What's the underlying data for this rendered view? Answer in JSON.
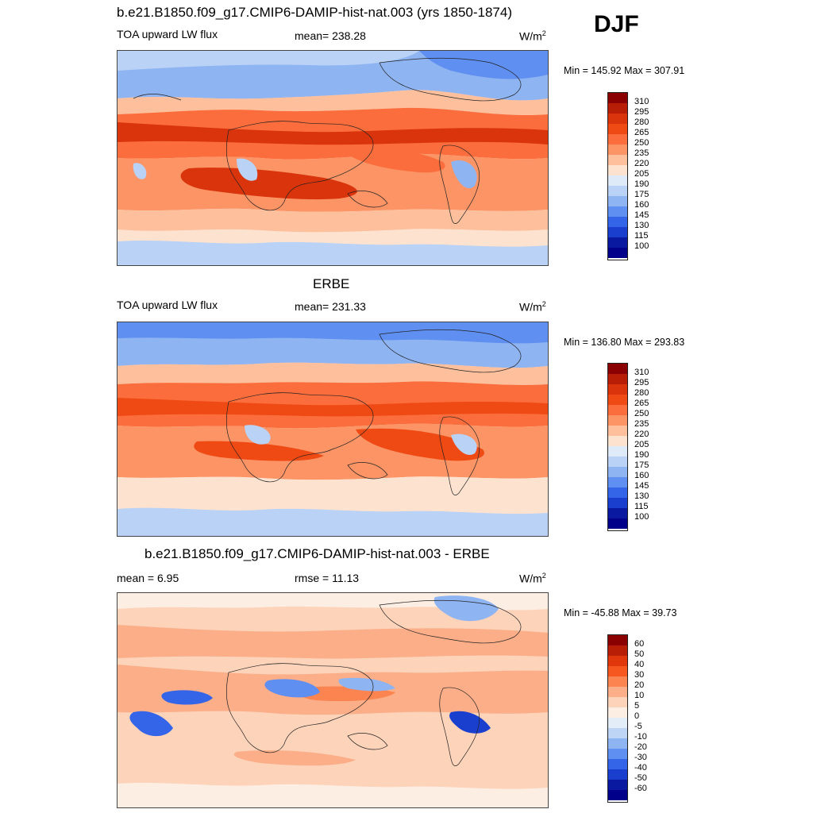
{
  "season": "DJF",
  "panels": [
    {
      "title": "b.e21.B1850.f09_g17.CMIP6-DAMIP-hist-nat.003 (yrs 1850-1874)",
      "left_label": "TOA upward LW flux",
      "center_label": "mean= 238.28",
      "units": "W/m",
      "units_sup": "2",
      "minmax": "Min = 145.92 Max = 307.91",
      "colorbar_labels": [
        "310",
        "295",
        "280",
        "265",
        "250",
        "235",
        "220",
        "205",
        "190",
        "175",
        "160",
        "145",
        "130",
        "115",
        "100"
      ]
    },
    {
      "title": "ERBE",
      "left_label": "TOA upward LW flux",
      "center_label": "mean= 231.33",
      "units": "W/m",
      "units_sup": "2",
      "minmax": "Min = 136.80 Max = 293.83",
      "colorbar_labels": [
        "310",
        "295",
        "280",
        "265",
        "250",
        "235",
        "220",
        "205",
        "190",
        "175",
        "160",
        "145",
        "130",
        "115",
        "100"
      ]
    },
    {
      "title": "b.e21.B1850.f09_g17.CMIP6-DAMIP-hist-nat.003 - ERBE",
      "left_label": "mean =   6.95",
      "center_label": "rmse =  11.13",
      "units": "W/m",
      "units_sup": "2",
      "minmax": "Min = -45.88 Max =  39.73",
      "colorbar_labels": [
        "60",
        "50",
        "40",
        "30",
        "20",
        "10",
        "5",
        "0",
        "-5",
        "-10",
        "-20",
        "-30",
        "-40",
        "-50",
        "-60"
      ]
    }
  ],
  "colors": {
    "abs_scale": [
      "#8b0000",
      "#b81e05",
      "#d9340b",
      "#f04a14",
      "#fb6d3c",
      "#fc9466",
      "#fdbf9c",
      "#fde3cf",
      "#dfeaf8",
      "#b9d2f5",
      "#8fb4f2",
      "#5f8ff0",
      "#3464e8",
      "#1a3fcf",
      "#0a1aa0",
      "#00008b"
    ],
    "diff_scale": [
      "#8b0000",
      "#b81e05",
      "#e0380c",
      "#f6571f",
      "#fb8450",
      "#fcae88",
      "#fdd3ba",
      "#fdeee4",
      "#e3edf8",
      "#bed5f5",
      "#8fb4f2",
      "#5f8ff0",
      "#3464e8",
      "#1a3fcf",
      "#0a1aa0",
      "#00008b"
    ]
  }
}
